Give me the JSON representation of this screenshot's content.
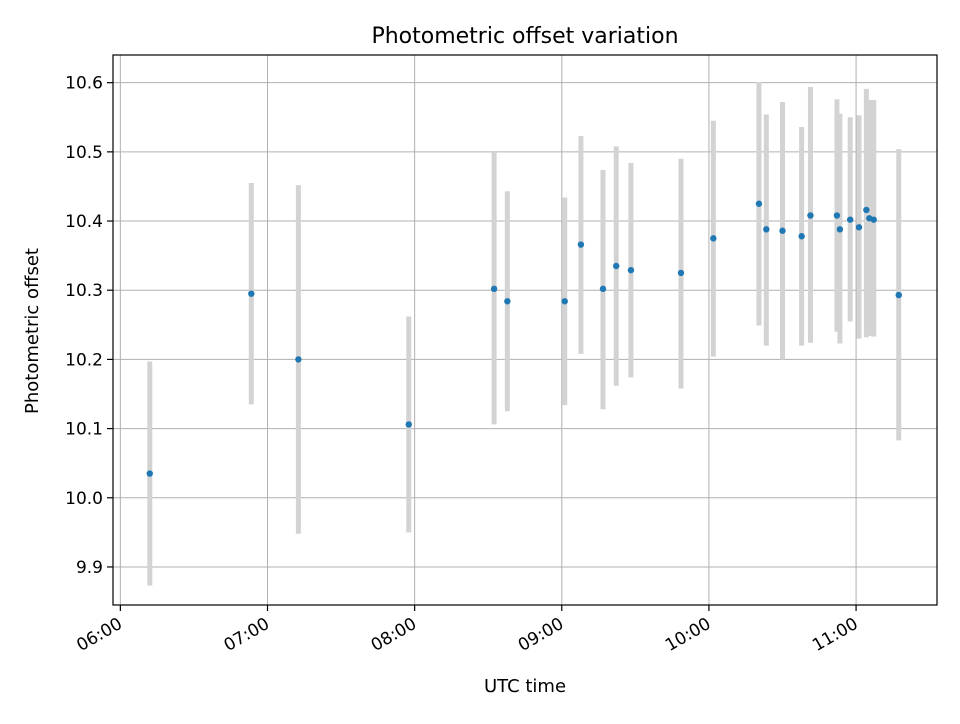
{
  "chart_data": {
    "type": "scatter",
    "title": "Photometric offset variation",
    "xlabel": "UTC time",
    "ylabel": "Photometric offset",
    "x_unit": "hours UTC",
    "xlim": [
      5.95,
      11.55
    ],
    "ylim": [
      9.845,
      10.64
    ],
    "xticks": [
      {
        "value": 6,
        "label": "06:00"
      },
      {
        "value": 7,
        "label": "07:00"
      },
      {
        "value": 8,
        "label": "08:00"
      },
      {
        "value": 9,
        "label": "09:00"
      },
      {
        "value": 10,
        "label": "10:00"
      },
      {
        "value": 11,
        "label": "11:00"
      }
    ],
    "yticks": [
      {
        "value": 9.9,
        "label": "9.9"
      },
      {
        "value": 10.0,
        "label": "10.0"
      },
      {
        "value": 10.1,
        "label": "10.1"
      },
      {
        "value": 10.2,
        "label": "10.2"
      },
      {
        "value": 10.3,
        "label": "10.3"
      },
      {
        "value": 10.4,
        "label": "10.4"
      },
      {
        "value": 10.5,
        "label": "10.5"
      },
      {
        "value": 10.6,
        "label": "10.6"
      }
    ],
    "grid": true,
    "legend": "none",
    "colors": {
      "point": "#1f77b4",
      "errorbar": "#d3d3d3",
      "grid": "#b0b0b0"
    },
    "points": [
      {
        "x": 6.2,
        "y": 10.035,
        "lo": 9.873,
        "hi": 10.197
      },
      {
        "x": 6.89,
        "y": 10.295,
        "lo": 10.135,
        "hi": 10.455
      },
      {
        "x": 7.21,
        "y": 10.2,
        "lo": 9.948,
        "hi": 10.452
      },
      {
        "x": 7.96,
        "y": 10.106,
        "lo": 9.95,
        "hi": 10.262
      },
      {
        "x": 8.54,
        "y": 10.302,
        "lo": 10.106,
        "hi": 10.5
      },
      {
        "x": 8.63,
        "y": 10.284,
        "lo": 10.125,
        "hi": 10.443
      },
      {
        "x": 9.02,
        "y": 10.284,
        "lo": 10.134,
        "hi": 10.434
      },
      {
        "x": 9.13,
        "y": 10.366,
        "lo": 10.208,
        "hi": 10.523
      },
      {
        "x": 9.28,
        "y": 10.302,
        "lo": 10.128,
        "hi": 10.474
      },
      {
        "x": 9.37,
        "y": 10.335,
        "lo": 10.162,
        "hi": 10.508
      },
      {
        "x": 9.47,
        "y": 10.329,
        "lo": 10.174,
        "hi": 10.484
      },
      {
        "x": 9.81,
        "y": 10.325,
        "lo": 10.158,
        "hi": 10.49
      },
      {
        "x": 10.03,
        "y": 10.375,
        "lo": 10.204,
        "hi": 10.545
      },
      {
        "x": 10.34,
        "y": 10.425,
        "lo": 10.249,
        "hi": 10.601
      },
      {
        "x": 10.39,
        "y": 10.388,
        "lo": 10.22,
        "hi": 10.554
      },
      {
        "x": 10.5,
        "y": 10.386,
        "lo": 10.2,
        "hi": 10.572
      },
      {
        "x": 10.63,
        "y": 10.378,
        "lo": 10.22,
        "hi": 10.536
      },
      {
        "x": 10.69,
        "y": 10.408,
        "lo": 10.224,
        "hi": 10.594
      },
      {
        "x": 10.87,
        "y": 10.408,
        "lo": 10.24,
        "hi": 10.576
      },
      {
        "x": 10.89,
        "y": 10.388,
        "lo": 10.223,
        "hi": 10.555
      },
      {
        "x": 10.96,
        "y": 10.402,
        "lo": 10.255,
        "hi": 10.55
      },
      {
        "x": 11.02,
        "y": 10.391,
        "lo": 10.23,
        "hi": 10.553
      },
      {
        "x": 11.07,
        "y": 10.416,
        "lo": 10.232,
        "hi": 10.591
      },
      {
        "x": 11.09,
        "y": 10.404,
        "lo": 10.234,
        "hi": 10.575
      },
      {
        "x": 11.12,
        "y": 10.402,
        "lo": 10.233,
        "hi": 10.575
      },
      {
        "x": 11.29,
        "y": 10.293,
        "lo": 10.083,
        "hi": 10.504
      }
    ]
  }
}
